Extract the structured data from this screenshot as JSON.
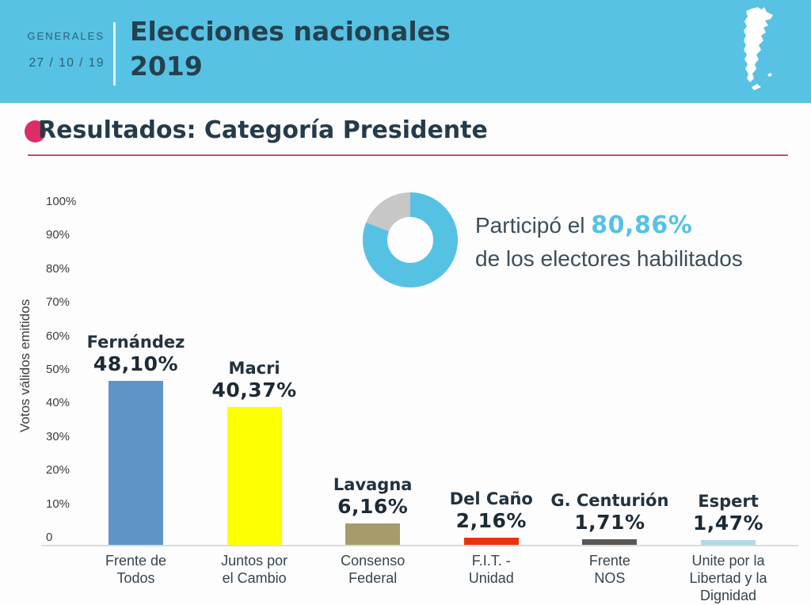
{
  "header": {
    "kicker": "GENERALES",
    "date": "27 / 10 / 19",
    "title_line1": "Elecciones nacionales",
    "title_line2": "2019",
    "bg_color": "#57C2E3",
    "title_color": "#24414F",
    "map_icon": "argentina-map"
  },
  "section": {
    "title": "Resultados: Categoría Presidente",
    "bullet_color": "#DB2E67",
    "underline_color": "#C84B70"
  },
  "participation": {
    "prefix": "Participó el",
    "value": "80,86%",
    "percent": 80.86,
    "suffix_line": "de los electores habilitados",
    "donut_color": "#56C2E3",
    "remainder_color": "#C7C7C7"
  },
  "chart_data": [
    {
      "type": "bar",
      "title": "Resultados: Categoría Presidente",
      "xlabel": "",
      "ylabel": "Votos válidos emitidos",
      "ylim": [
        0,
        100
      ],
      "ytick_values": [
        0,
        10,
        20,
        30,
        40,
        50,
        60,
        70,
        80,
        90,
        100
      ],
      "ytick_labels": [
        "0",
        "10%",
        "20%",
        "30%",
        "40%",
        "50%",
        "60%",
        "70%",
        "80%",
        "90%",
        "100%"
      ],
      "grid": false,
      "legend": "none",
      "categories": [
        "Frente de Todos",
        "Juntos por el Cambio",
        "Consenso Federal",
        "F.I.T. - Unidad",
        "Frente NOS",
        "Unite por la Libertad y la Dignidad"
      ],
      "values": [
        48.1,
        40.37,
        6.16,
        2.16,
        1.71,
        1.47
      ],
      "bars": [
        {
          "candidate": "Fernández",
          "value": 48.1,
          "value_label": "48,10%",
          "party_lines": [
            "Frente de",
            "Todos"
          ],
          "color": "#5E94C8"
        },
        {
          "candidate": "Macri",
          "value": 40.37,
          "value_label": "40,37%",
          "party_lines": [
            "Juntos por",
            "el Cambio"
          ],
          "color": "#FBFF00"
        },
        {
          "candidate": "Lavagna",
          "value": 6.16,
          "value_label": "6,16%",
          "party_lines": [
            "Consenso",
            "Federal"
          ],
          "color": "#A79B6B"
        },
        {
          "candidate": "Del Caño",
          "value": 2.16,
          "value_label": "2,16%",
          "party_lines": [
            "F.I.T. -",
            "Unidad"
          ],
          "color": "#E8330E"
        },
        {
          "candidate": "G. Centurión",
          "value": 1.71,
          "value_label": "1,71%",
          "party_lines": [
            "Frente",
            "NOS"
          ],
          "color": "#575757"
        },
        {
          "candidate": "Espert",
          "value": 1.47,
          "value_label": "1,47%",
          "party_lines": [
            "Unite por la",
            "Libertad y la",
            "Dignidad"
          ],
          "color": "#AFD9E8"
        }
      ]
    },
    {
      "type": "pie",
      "subtype": "donut",
      "values": [
        80.86,
        19.14
      ],
      "segment_names": [
        "participó",
        "resto"
      ],
      "colors": [
        "#56C2E3",
        "#C7C7C7"
      ],
      "annotation": "Participó el 80,86% de los electores habilitados",
      "start_angle": "top",
      "direction": "clockwise"
    }
  ]
}
